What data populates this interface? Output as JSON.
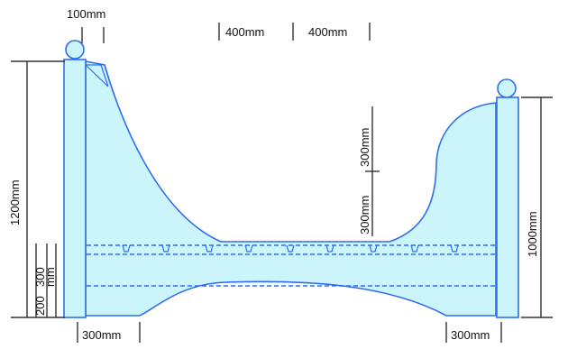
{
  "colors": {
    "outline": "#2f6df0",
    "fill": "#ccf4fb",
    "dimension_line": "#333333",
    "text": "#111111"
  },
  "dimensions": {
    "top_gap": "100mm",
    "top_span_left": "400mm",
    "top_span_right": "400mm",
    "left_height": "1200mm",
    "left_low_200": "200",
    "left_low_300": "300",
    "left_low_unit": "mm",
    "right_height": "1000mm",
    "middle_upper": "300mm",
    "middle_lower": "300mm",
    "bottom_left": "300mm",
    "bottom_right": "300mm"
  }
}
